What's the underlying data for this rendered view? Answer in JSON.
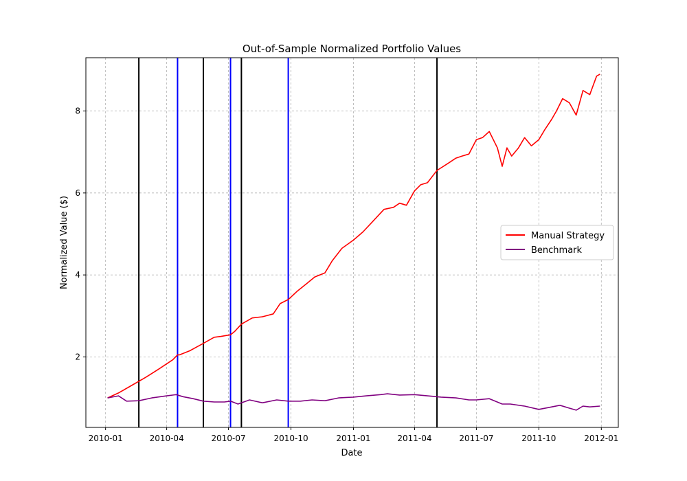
{
  "chart_data": {
    "type": "line",
    "title": "Out-of-Sample Normalized Portfolio Values",
    "xlabel": "Date",
    "ylabel": "Normalized Value ($)",
    "xlim": [
      "2009-12-03",
      "2012-01-26"
    ],
    "ylim": [
      0.28,
      9.3
    ],
    "grid": true,
    "legend_position": "center-right",
    "x_ticks": [
      "2010-01",
      "2010-04",
      "2010-07",
      "2010-10",
      "2011-01",
      "2011-04",
      "2011-07",
      "2011-10",
      "2012-01"
    ],
    "y_ticks": [
      "2",
      "4",
      "6",
      "8"
    ],
    "vertical_lines": [
      {
        "date": "2010-02-19",
        "color": "#000000"
      },
      {
        "date": "2010-04-17",
        "color": "#0000ff"
      },
      {
        "date": "2010-05-25",
        "color": "#000000"
      },
      {
        "date": "2010-07-04",
        "color": "#0000ff"
      },
      {
        "date": "2010-07-20",
        "color": "#000000"
      },
      {
        "date": "2010-09-27",
        "color": "#0000ff"
      },
      {
        "date": "2011-05-04",
        "color": "#000000"
      }
    ],
    "series": [
      {
        "name": "Manual Strategy",
        "color": "#ff0000",
        "x": [
          "2010-01-04",
          "2010-01-20",
          "2010-02-10",
          "2010-03-01",
          "2010-03-20",
          "2010-04-10",
          "2010-04-17",
          "2010-04-20",
          "2010-05-05",
          "2010-05-25",
          "2010-06-10",
          "2010-06-20",
          "2010-07-04",
          "2010-07-10",
          "2010-07-20",
          "2010-08-05",
          "2010-08-20",
          "2010-09-05",
          "2010-09-15",
          "2010-09-27",
          "2010-10-10",
          "2010-10-25",
          "2010-11-05",
          "2010-11-20",
          "2010-12-01",
          "2010-12-15",
          "2011-01-01",
          "2011-01-15",
          "2011-02-01",
          "2011-02-15",
          "2011-03-01",
          "2011-03-10",
          "2011-03-20",
          "2011-04-01",
          "2011-04-10",
          "2011-04-20",
          "2011-05-04",
          "2011-05-20",
          "2011-06-01",
          "2011-06-10",
          "2011-06-20",
          "2011-07-01",
          "2011-07-10",
          "2011-07-20",
          "2011-08-01",
          "2011-08-08",
          "2011-08-15",
          "2011-08-22",
          "2011-09-01",
          "2011-09-10",
          "2011-09-20",
          "2011-10-01",
          "2011-10-10",
          "2011-10-20",
          "2011-10-27",
          "2011-11-05",
          "2011-11-15",
          "2011-11-25",
          "2011-12-05",
          "2011-12-15",
          "2011-12-25",
          "2011-12-30"
        ],
        "values": [
          1.0,
          1.12,
          1.32,
          1.5,
          1.7,
          1.93,
          2.05,
          2.05,
          2.15,
          2.33,
          2.48,
          2.5,
          2.54,
          2.62,
          2.8,
          2.95,
          2.98,
          3.05,
          3.3,
          3.4,
          3.6,
          3.8,
          3.95,
          4.05,
          4.35,
          4.65,
          4.85,
          5.05,
          5.35,
          5.6,
          5.65,
          5.75,
          5.7,
          6.05,
          6.2,
          6.25,
          6.55,
          6.72,
          6.85,
          6.9,
          6.95,
          7.3,
          7.35,
          7.5,
          7.1,
          6.65,
          7.1,
          6.9,
          7.1,
          7.35,
          7.15,
          7.3,
          7.55,
          7.8,
          8.0,
          8.3,
          8.2,
          7.9,
          8.5,
          8.4,
          8.85,
          8.9
        ]
      },
      {
        "name": "Benchmark",
        "color": "#800080",
        "x": [
          "2010-01-04",
          "2010-01-20",
          "2010-02-01",
          "2010-02-19",
          "2010-03-10",
          "2010-04-01",
          "2010-04-15",
          "2010-04-25",
          "2010-05-10",
          "2010-05-25",
          "2010-06-10",
          "2010-06-25",
          "2010-07-04",
          "2010-07-15",
          "2010-08-01",
          "2010-08-20",
          "2010-09-10",
          "2010-09-27",
          "2010-10-15",
          "2010-11-01",
          "2010-11-20",
          "2010-12-10",
          "2011-01-01",
          "2011-01-20",
          "2011-02-10",
          "2011-02-20",
          "2011-03-10",
          "2011-04-01",
          "2011-04-20",
          "2011-05-10",
          "2011-06-01",
          "2011-06-20",
          "2011-07-01",
          "2011-07-20",
          "2011-08-08",
          "2011-08-20",
          "2011-09-10",
          "2011-10-01",
          "2011-10-20",
          "2011-11-01",
          "2011-11-15",
          "2011-11-25",
          "2011-12-05",
          "2011-12-15",
          "2011-12-30"
        ],
        "values": [
          1.0,
          1.05,
          0.92,
          0.93,
          1.0,
          1.05,
          1.08,
          1.03,
          0.98,
          0.92,
          0.9,
          0.9,
          0.92,
          0.85,
          0.95,
          0.88,
          0.95,
          0.92,
          0.92,
          0.95,
          0.93,
          1.0,
          1.02,
          1.05,
          1.08,
          1.1,
          1.07,
          1.08,
          1.05,
          1.02,
          1.0,
          0.95,
          0.95,
          0.98,
          0.85,
          0.85,
          0.8,
          0.72,
          0.78,
          0.82,
          0.75,
          0.7,
          0.8,
          0.78,
          0.8
        ]
      }
    ]
  }
}
